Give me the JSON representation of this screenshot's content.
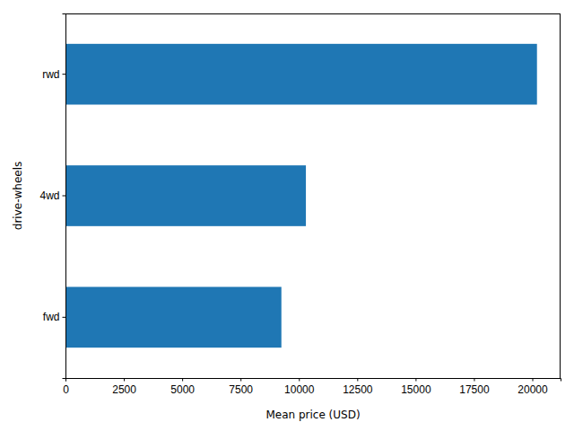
{
  "chart_data": {
    "type": "bar",
    "orientation": "horizontal",
    "x_label": "Mean price (USD)",
    "y_label": "drive-wheels",
    "categories": [
      "fwd",
      "4wd",
      "rwd"
    ],
    "values": [
      9250,
      10300,
      20200
    ],
    "color": "#1f77b4",
    "xlim": [
      0,
      21210
    ],
    "xticks": [
      0,
      2500,
      5000,
      7500,
      10000,
      12500,
      15000,
      17500,
      20000
    ],
    "grid": false
  }
}
